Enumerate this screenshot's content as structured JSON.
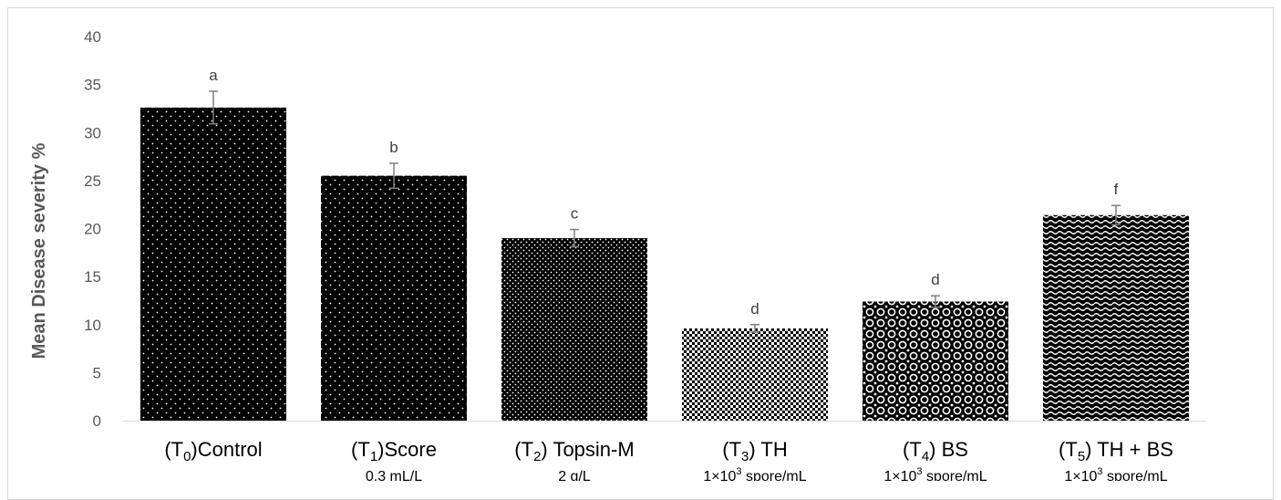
{
  "chart_data": {
    "type": "bar",
    "ylabel": "Mean Disease severity %",
    "xlabel": "",
    "ylim": [
      0,
      40
    ],
    "yticks": [
      0,
      5,
      10,
      15,
      20,
      25,
      30,
      35,
      40
    ],
    "grid": false,
    "categories": [
      {
        "pre": "(T",
        "sub": "0",
        "post": ")Control",
        "line2": "",
        "sup": "",
        "line2_post": ""
      },
      {
        "pre": "(T",
        "sub": "1",
        "post": ")Score",
        "line2": "0.3 mL/L",
        "sup": "",
        "line2_post": ""
      },
      {
        "pre": "(T",
        "sub": "2",
        "post": ") Topsin-M",
        "line2": "2 g/L",
        "sup": "",
        "line2_post": ""
      },
      {
        "pre": "(T",
        "sub": "3",
        "post": ") TH",
        "line2": "1×10",
        "sup": "3",
        "line2_post": " spore/mL"
      },
      {
        "pre": "(T",
        "sub": "4",
        "post": ") BS",
        "line2": "1×10",
        "sup": "3",
        "line2_post": " spore/mL"
      },
      {
        "pre": "(T",
        "sub": "5",
        "post": ") TH + BS",
        "line2": "1×10",
        "sup": "3",
        "line2_post": " spore/mL"
      }
    ],
    "values": [
      32.6,
      25.5,
      19.0,
      9.6,
      12.4,
      21.4
    ],
    "error": [
      1.7,
      1.3,
      0.9,
      0.4,
      0.6,
      1.0
    ],
    "labels": [
      "a",
      "b",
      "c",
      "d",
      "d",
      "f"
    ],
    "patterns": [
      "small-dots",
      "small-dots",
      "dense-dots",
      "checker",
      "circles",
      "wave"
    ]
  }
}
